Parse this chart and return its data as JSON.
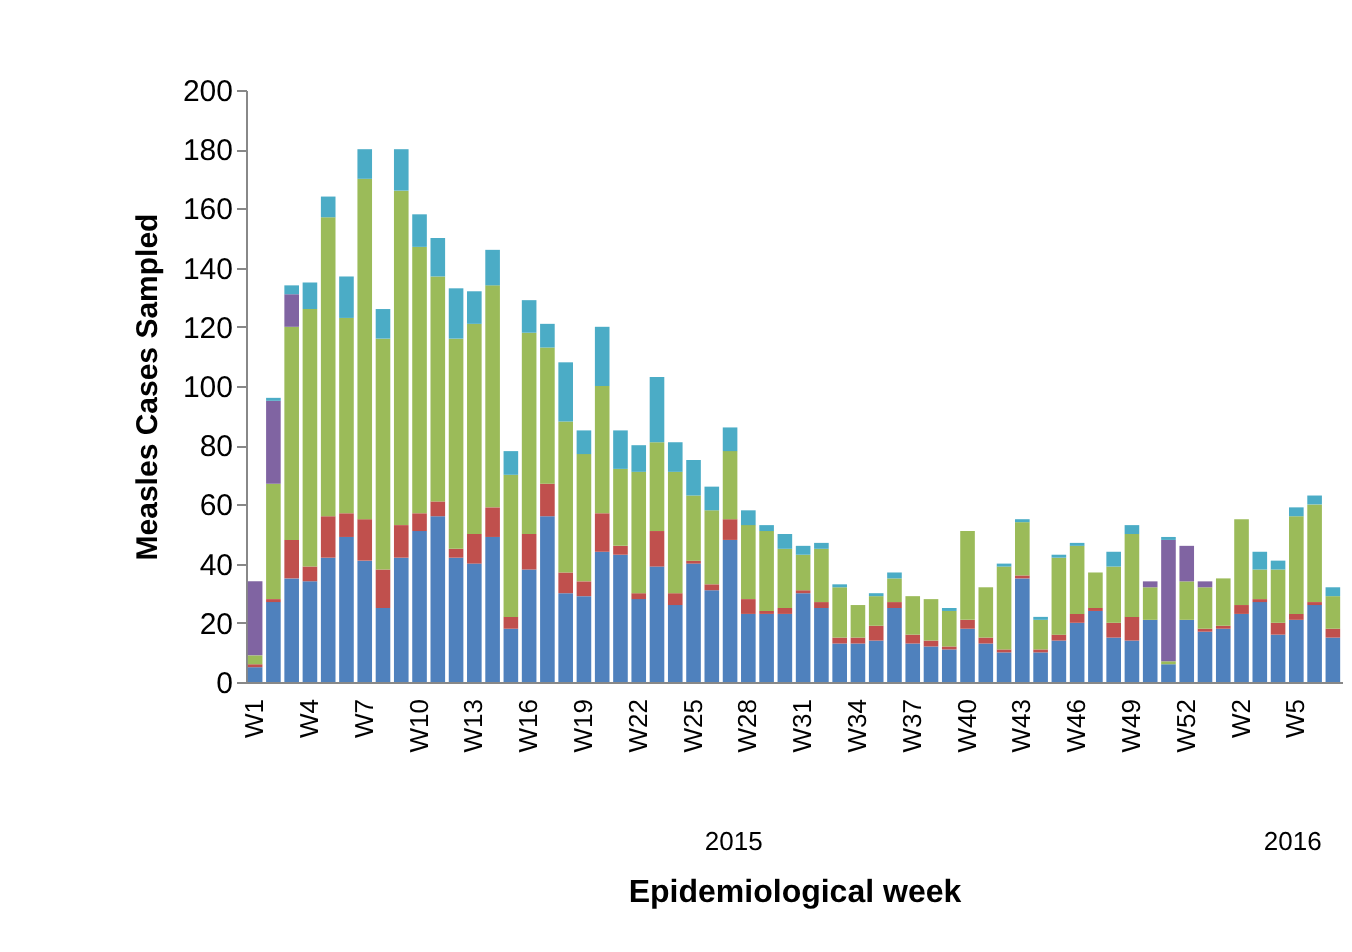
{
  "chart_data": {
    "type": "bar",
    "stacked": true,
    "ylabel": "Measles Cases Sampled",
    "xlabel": "Epidemiological week",
    "categories": [
      "W1",
      null,
      null,
      "W4",
      null,
      null,
      "W7",
      null,
      null,
      "W10",
      null,
      null,
      "W13",
      null,
      null,
      "W16",
      null,
      null,
      "W19",
      null,
      null,
      "W22",
      null,
      null,
      "W25",
      null,
      null,
      "W28",
      null,
      null,
      "W31",
      null,
      null,
      "W34",
      null,
      null,
      "W37",
      null,
      null,
      "W40",
      null,
      null,
      "W43",
      null,
      null,
      "W46",
      null,
      null,
      "W49",
      null,
      null,
      "W52",
      null,
      null,
      "W2",
      null,
      null,
      "W5",
      null,
      null
    ],
    "series": [
      {
        "color": "#4f81bd",
        "values": [
          5,
          27,
          35,
          34,
          42,
          49,
          41,
          25,
          42,
          51,
          56,
          42,
          40,
          49,
          18,
          38,
          56,
          30,
          29,
          44,
          43,
          28,
          39,
          26,
          40,
          31,
          48,
          23,
          23,
          23,
          30,
          25,
          13,
          13,
          14,
          25,
          13,
          12,
          11,
          18,
          13,
          10,
          35,
          10,
          14,
          20,
          24,
          15,
          14,
          21,
          6,
          21,
          17,
          18,
          23,
          27,
          16,
          21,
          26,
          15
        ]
      },
      {
        "color": "#c0504d",
        "values": [
          1,
          1,
          13,
          5,
          14,
          8,
          14,
          13,
          11,
          6,
          5,
          3,
          10,
          10,
          4,
          12,
          11,
          7,
          5,
          13,
          3,
          2,
          12,
          4,
          1,
          2,
          7,
          5,
          1,
          2,
          1,
          2,
          2,
          2,
          5,
          2,
          3,
          2,
          1,
          3,
          2,
          1,
          1,
          1,
          2,
          3,
          1,
          5,
          8,
          0,
          0,
          0,
          1,
          1,
          3,
          1,
          4,
          2,
          1,
          3
        ]
      },
      {
        "color": "#9bbb59",
        "values": [
          3,
          39,
          72,
          87,
          101,
          66,
          115,
          78,
          113,
          90,
          76,
          71,
          71,
          75,
          48,
          68,
          46,
          51,
          43,
          43,
          26,
          41,
          30,
          41,
          22,
          25,
          23,
          25,
          27,
          20,
          12,
          18,
          17,
          11,
          10,
          8,
          13,
          14,
          12,
          30,
          17,
          28,
          18,
          10,
          26,
          23,
          12,
          19,
          28,
          11,
          1,
          13,
          14,
          16,
          29,
          10,
          18,
          33,
          33,
          11
        ]
      },
      {
        "color": "#8064a2",
        "values": [
          25,
          28,
          11,
          0,
          0,
          0,
          0,
          0,
          0,
          0,
          0,
          0,
          0,
          0,
          0,
          0,
          0,
          0,
          0,
          0,
          0,
          0,
          0,
          0,
          0,
          0,
          0,
          0,
          0,
          0,
          0,
          0,
          0,
          0,
          0,
          0,
          0,
          0,
          0,
          0,
          0,
          0,
          0,
          0,
          0,
          0,
          0,
          0,
          0,
          2,
          41,
          12,
          2,
          0,
          0,
          0,
          0,
          0,
          0,
          0
        ]
      },
      {
        "color": "#4bacc6",
        "values": [
          0,
          1,
          3,
          9,
          7,
          14,
          10,
          10,
          14,
          11,
          13,
          17,
          11,
          12,
          8,
          11,
          8,
          20,
          8,
          20,
          13,
          9,
          22,
          10,
          12,
          8,
          8,
          5,
          2,
          5,
          3,
          2,
          1,
          0,
          1,
          2,
          0,
          0,
          1,
          0,
          0,
          1,
          1,
          1,
          1,
          1,
          0,
          5,
          3,
          0,
          1,
          0,
          0,
          0,
          0,
          6,
          3,
          3,
          3,
          3
        ]
      }
    ],
    "ylim": [
      0,
      200
    ],
    "yticks": [
      0,
      20,
      40,
      60,
      80,
      100,
      120,
      140,
      160,
      180,
      200
    ],
    "grid": false,
    "legend": false,
    "annotations": [
      "2015",
      "2016"
    ]
  }
}
